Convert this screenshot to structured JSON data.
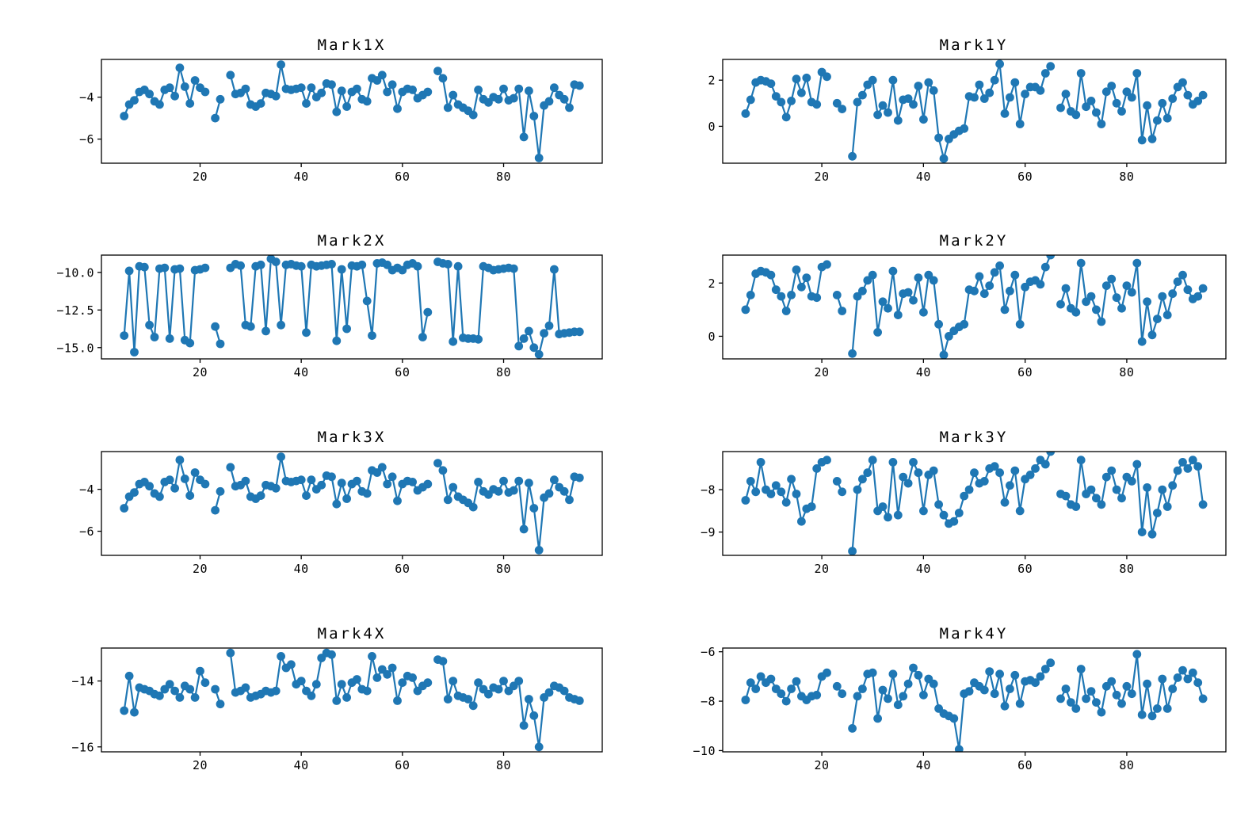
{
  "figure": {
    "background": "#ffffff",
    "axis_color": "#000000",
    "series_color": "#1f77b4"
  },
  "chart_data": {
    "type": "line",
    "marker": "circle",
    "marker_color": "#1f77b4",
    "grid": false,
    "legend": null,
    "xlim": [
      0.5,
      99.5
    ],
    "xticks": [
      20,
      40,
      60,
      80
    ],
    "xtick_labels": [
      "20",
      "40",
      "60",
      "80"
    ],
    "x": [
      5,
      6,
      7,
      8,
      9,
      10,
      11,
      12,
      13,
      14,
      15,
      16,
      17,
      18,
      19,
      20,
      21,
      23,
      24,
      26,
      27,
      28,
      29,
      30,
      31,
      32,
      33,
      34,
      35,
      36,
      37,
      38,
      39,
      40,
      41,
      42,
      43,
      44,
      45,
      46,
      47,
      48,
      49,
      50,
      51,
      52,
      53,
      54,
      55,
      56,
      57,
      58,
      59,
      60,
      61,
      62,
      63,
      64,
      65,
      67,
      68,
      69,
      70,
      71,
      72,
      73,
      74,
      75,
      76,
      77,
      78,
      79,
      80,
      81,
      82,
      83,
      84,
      85,
      86,
      87,
      88,
      89,
      90,
      91,
      92,
      93,
      94,
      95
    ],
    "subplots": [
      {
        "id": "mark1x",
        "title": "Mark1X",
        "ylim": [
          -7.15,
          -2.2
        ],
        "yticks": [
          -4,
          -6
        ],
        "ytick_labels": [
          "−4",
          "−6"
        ],
        "values": [
          -4.9,
          -4.35,
          -4.15,
          -3.75,
          -3.65,
          -3.85,
          -4.2,
          -4.35,
          -3.65,
          -3.55,
          -3.95,
          -2.6,
          -3.5,
          -4.3,
          -3.2,
          -3.55,
          -3.75,
          -5.0,
          -4.1,
          -2.95,
          -3.85,
          -3.8,
          -3.6,
          -4.35,
          -4.45,
          -4.3,
          -3.8,
          -3.85,
          -3.95,
          -2.45,
          -3.6,
          -3.65,
          -3.6,
          -3.55,
          -4.3,
          -3.55,
          -4.0,
          -3.8,
          -3.35,
          -3.4,
          -4.7,
          -3.7,
          -4.45,
          -3.75,
          -3.6,
          -4.1,
          -4.2,
          -3.1,
          -3.2,
          -2.95,
          -3.75,
          -3.4,
          -4.55,
          -3.75,
          -3.6,
          -3.65,
          -4.05,
          -3.9,
          -3.75,
          -2.75,
          -3.1,
          -4.5,
          -3.9,
          -4.35,
          -4.5,
          -4.65,
          -4.85,
          -3.65,
          -4.1,
          -4.25,
          -4.0,
          -4.1,
          -3.6,
          -4.15,
          -4.05,
          -3.6,
          -5.9,
          -3.7,
          -4.9,
          -6.9,
          -4.4,
          -4.2,
          -3.55,
          -3.9,
          -4.1,
          -4.5,
          -3.4,
          -3.45
        ]
      },
      {
        "id": "mark1y",
        "title": "Mark1Y",
        "ylim": [
          -1.6,
          2.9
        ],
        "yticks": [
          2,
          0
        ],
        "ytick_labels": [
          "2",
          "0"
        ],
        "values": [
          0.55,
          1.15,
          1.9,
          2.0,
          1.95,
          1.85,
          1.3,
          1.05,
          0.4,
          1.1,
          2.05,
          1.45,
          2.1,
          1.05,
          0.95,
          2.35,
          2.15,
          1.0,
          0.75,
          -1.3,
          1.05,
          1.35,
          1.8,
          2.0,
          0.5,
          0.9,
          0.6,
          2.0,
          0.25,
          1.15,
          1.2,
          0.95,
          1.75,
          0.3,
          1.9,
          1.55,
          -0.5,
          -1.4,
          -0.55,
          -0.35,
          -0.2,
          -0.1,
          1.3,
          1.25,
          1.8,
          1.2,
          1.45,
          2.0,
          2.7,
          0.55,
          1.25,
          1.9,
          0.1,
          1.4,
          1.7,
          1.7,
          1.55,
          2.3,
          2.6,
          0.8,
          1.4,
          0.65,
          0.5,
          2.3,
          0.85,
          1.1,
          0.6,
          0.1,
          1.5,
          1.75,
          1.0,
          0.65,
          1.5,
          1.25,
          2.3,
          -0.6,
          0.9,
          -0.55,
          0.25,
          1.0,
          0.35,
          1.2,
          1.7,
          1.9,
          1.35,
          0.95,
          1.1,
          1.35
        ]
      },
      {
        "id": "mark2x",
        "title": "Mark2X",
        "ylim": [
          -15.75,
          -8.85
        ],
        "yticks": [
          -10.0,
          -12.5,
          -15.0
        ],
        "ytick_labels": [
          "−10.0",
          "−12.5",
          "−15.0"
        ],
        "values": [
          -14.2,
          -9.9,
          -15.3,
          -9.6,
          -9.65,
          -13.5,
          -14.3,
          -9.75,
          -9.7,
          -14.4,
          -9.8,
          -9.75,
          -14.5,
          -14.7,
          -9.85,
          -9.8,
          -9.7,
          -13.6,
          -14.75,
          -9.7,
          -9.45,
          -9.55,
          -13.5,
          -13.6,
          -9.6,
          -9.5,
          -13.9,
          -9.1,
          -9.3,
          -13.5,
          -9.5,
          -9.45,
          -9.55,
          -9.6,
          -14.0,
          -9.5,
          -9.6,
          -9.55,
          -9.5,
          -9.45,
          -14.55,
          -9.8,
          -13.75,
          -9.55,
          -9.6,
          -9.5,
          -11.9,
          -14.2,
          -9.4,
          -9.35,
          -9.5,
          -9.85,
          -9.7,
          -9.85,
          -9.5,
          -9.4,
          -9.6,
          -14.3,
          -12.65,
          -9.3,
          -9.4,
          -9.45,
          -14.6,
          -9.6,
          -14.35,
          -14.4,
          -14.4,
          -14.45,
          -9.6,
          -9.7,
          -9.85,
          -9.8,
          -9.75,
          -9.7,
          -9.75,
          -14.9,
          -14.4,
          -13.9,
          -15.0,
          -15.45,
          -14.05,
          -13.55,
          -9.8,
          -14.1,
          -14.05,
          -14.0,
          -13.95,
          -13.95
        ]
      },
      {
        "id": "mark2y",
        "title": "Mark2Y",
        "ylim": [
          -0.85,
          3.05
        ],
        "yticks": [
          2,
          0
        ],
        "ytick_labels": [
          "2",
          "0"
        ],
        "values": [
          1.0,
          1.55,
          2.35,
          2.45,
          2.4,
          2.3,
          1.75,
          1.5,
          0.95,
          1.55,
          2.5,
          1.85,
          2.2,
          1.5,
          1.45,
          2.6,
          2.7,
          1.55,
          0.95,
          -0.65,
          1.5,
          1.7,
          2.1,
          2.3,
          0.15,
          1.3,
          1.05,
          2.45,
          0.8,
          1.6,
          1.65,
          1.35,
          2.2,
          0.9,
          2.3,
          2.1,
          0.45,
          -0.7,
          0.0,
          0.2,
          0.35,
          0.45,
          1.75,
          1.7,
          2.25,
          1.6,
          1.9,
          2.4,
          2.65,
          1.0,
          1.7,
          2.3,
          0.45,
          1.85,
          2.05,
          2.1,
          1.95,
          2.6,
          3.05,
          1.2,
          1.8,
          1.05,
          0.9,
          2.75,
          1.3,
          1.5,
          1.0,
          0.55,
          1.9,
          2.15,
          1.45,
          1.05,
          1.9,
          1.65,
          2.75,
          -0.2,
          1.3,
          0.05,
          0.65,
          1.5,
          0.8,
          1.6,
          2.05,
          2.3,
          1.75,
          1.4,
          1.5,
          1.8
        ]
      },
      {
        "id": "mark3x",
        "title": "Mark3X",
        "ylim": [
          -7.15,
          -2.2
        ],
        "yticks": [
          -4,
          -6
        ],
        "ytick_labels": [
          "−4",
          "−6"
        ],
        "values": [
          -4.9,
          -4.35,
          -4.15,
          -3.75,
          -3.65,
          -3.85,
          -4.2,
          -4.35,
          -3.65,
          -3.55,
          -3.95,
          -2.6,
          -3.5,
          -4.3,
          -3.2,
          -3.55,
          -3.75,
          -5.0,
          -4.1,
          -2.95,
          -3.85,
          -3.8,
          -3.6,
          -4.35,
          -4.45,
          -4.3,
          -3.8,
          -3.85,
          -3.95,
          -2.45,
          -3.6,
          -3.65,
          -3.6,
          -3.55,
          -4.3,
          -3.55,
          -4.0,
          -3.8,
          -3.35,
          -3.4,
          -4.7,
          -3.7,
          -4.45,
          -3.75,
          -3.6,
          -4.1,
          -4.2,
          -3.1,
          -3.2,
          -2.95,
          -3.75,
          -3.4,
          -4.55,
          -3.75,
          -3.6,
          -3.65,
          -4.05,
          -3.9,
          -3.75,
          -2.75,
          -3.1,
          -4.5,
          -3.9,
          -4.35,
          -4.5,
          -4.65,
          -4.85,
          -3.65,
          -4.1,
          -4.25,
          -4.0,
          -4.1,
          -3.6,
          -4.15,
          -4.05,
          -3.6,
          -5.9,
          -3.7,
          -4.9,
          -6.9,
          -4.4,
          -4.2,
          -3.55,
          -3.9,
          -4.1,
          -4.5,
          -3.4,
          -3.45
        ]
      },
      {
        "id": "mark3y",
        "title": "Mark3Y",
        "ylim": [
          -9.55,
          -7.1
        ],
        "yticks": [
          -8,
          -9
        ],
        "ytick_labels": [
          "−8",
          "−9"
        ],
        "values": [
          -8.25,
          -7.8,
          -8.05,
          -7.35,
          -8.0,
          -8.1,
          -7.9,
          -8.05,
          -8.3,
          -7.75,
          -8.1,
          -8.75,
          -8.45,
          -8.4,
          -7.5,
          -7.35,
          -7.3,
          -7.8,
          -8.05,
          -9.45,
          -8.0,
          -7.75,
          -7.6,
          -7.3,
          -8.5,
          -8.4,
          -8.65,
          -7.35,
          -8.6,
          -7.7,
          -7.85,
          -7.35,
          -7.6,
          -8.5,
          -7.65,
          -7.55,
          -8.35,
          -8.6,
          -8.8,
          -8.75,
          -8.55,
          -8.15,
          -8.0,
          -7.6,
          -7.85,
          -7.8,
          -7.5,
          -7.45,
          -7.6,
          -8.3,
          -7.9,
          -7.55,
          -8.5,
          -7.75,
          -7.65,
          -7.5,
          -7.3,
          -7.4,
          -7.1,
          -8.1,
          -8.15,
          -8.35,
          -8.4,
          -7.3,
          -8.1,
          -8.0,
          -8.2,
          -8.35,
          -7.7,
          -7.55,
          -8.0,
          -8.2,
          -7.7,
          -7.8,
          -7.4,
          -9.0,
          -7.95,
          -9.05,
          -8.55,
          -8.0,
          -8.4,
          -7.9,
          -7.55,
          -7.35,
          -7.5,
          -7.3,
          -7.45,
          -8.35
        ]
      },
      {
        "id": "mark4x",
        "title": "Mark4X",
        "ylim": [
          -16.15,
          -13.0
        ],
        "yticks": [
          -14,
          -16
        ],
        "ytick_labels": [
          "−14",
          "−16"
        ],
        "values": [
          -14.9,
          -13.85,
          -14.95,
          -14.2,
          -14.25,
          -14.3,
          -14.4,
          -14.45,
          -14.25,
          -14.1,
          -14.3,
          -14.5,
          -14.15,
          -14.25,
          -14.5,
          -13.7,
          -14.05,
          -14.25,
          -14.7,
          -13.15,
          -14.35,
          -14.3,
          -14.2,
          -14.5,
          -14.45,
          -14.4,
          -14.3,
          -14.35,
          -14.3,
          -13.25,
          -13.6,
          -13.5,
          -14.1,
          -14.0,
          -14.3,
          -14.45,
          -14.1,
          -13.3,
          -13.15,
          -13.2,
          -14.6,
          -14.1,
          -14.5,
          -14.05,
          -13.95,
          -14.25,
          -14.3,
          -13.25,
          -13.9,
          -13.65,
          -13.8,
          -13.6,
          -14.6,
          -14.05,
          -13.85,
          -13.9,
          -14.3,
          -14.15,
          -14.05,
          -13.35,
          -13.4,
          -14.55,
          -14.0,
          -14.45,
          -14.5,
          -14.55,
          -14.75,
          -14.05,
          -14.25,
          -14.4,
          -14.2,
          -14.25,
          -14.0,
          -14.3,
          -14.15,
          -14.0,
          -15.35,
          -14.55,
          -15.05,
          -16.0,
          -14.5,
          -14.35,
          -14.15,
          -14.2,
          -14.3,
          -14.5,
          -14.55,
          -14.6
        ]
      },
      {
        "id": "mark4y",
        "title": "Mark4Y",
        "ylim": [
          -10.05,
          -5.85
        ],
        "yticks": [
          -6,
          -8,
          -10
        ],
        "ytick_labels": [
          "−6",
          "−8",
          "−10"
        ],
        "values": [
          -7.95,
          -7.25,
          -7.5,
          -7.0,
          -7.25,
          -7.1,
          -7.5,
          -7.7,
          -8.0,
          -7.5,
          -7.2,
          -7.8,
          -7.95,
          -7.8,
          -7.75,
          -7.0,
          -6.85,
          -7.4,
          -7.7,
          -9.1,
          -7.8,
          -7.5,
          -6.9,
          -6.85,
          -8.7,
          -7.55,
          -7.9,
          -6.9,
          -8.15,
          -7.8,
          -7.3,
          -6.65,
          -6.95,
          -7.75,
          -7.1,
          -7.3,
          -8.3,
          -8.5,
          -8.6,
          -8.7,
          -9.95,
          -7.7,
          -7.6,
          -7.25,
          -7.4,
          -7.55,
          -6.8,
          -7.7,
          -6.9,
          -8.2,
          -7.5,
          -6.95,
          -8.1,
          -7.2,
          -7.15,
          -7.25,
          -7.0,
          -6.7,
          -6.45,
          -7.9,
          -7.5,
          -8.05,
          -8.3,
          -6.7,
          -7.9,
          -7.6,
          -8.05,
          -8.45,
          -7.4,
          -7.2,
          -7.75,
          -8.1,
          -7.4,
          -7.7,
          -6.1,
          -8.55,
          -7.3,
          -8.6,
          -8.3,
          -7.1,
          -8.3,
          -7.5,
          -7.05,
          -6.75,
          -7.1,
          -6.85,
          -7.25,
          -7.9
        ]
      }
    ]
  }
}
